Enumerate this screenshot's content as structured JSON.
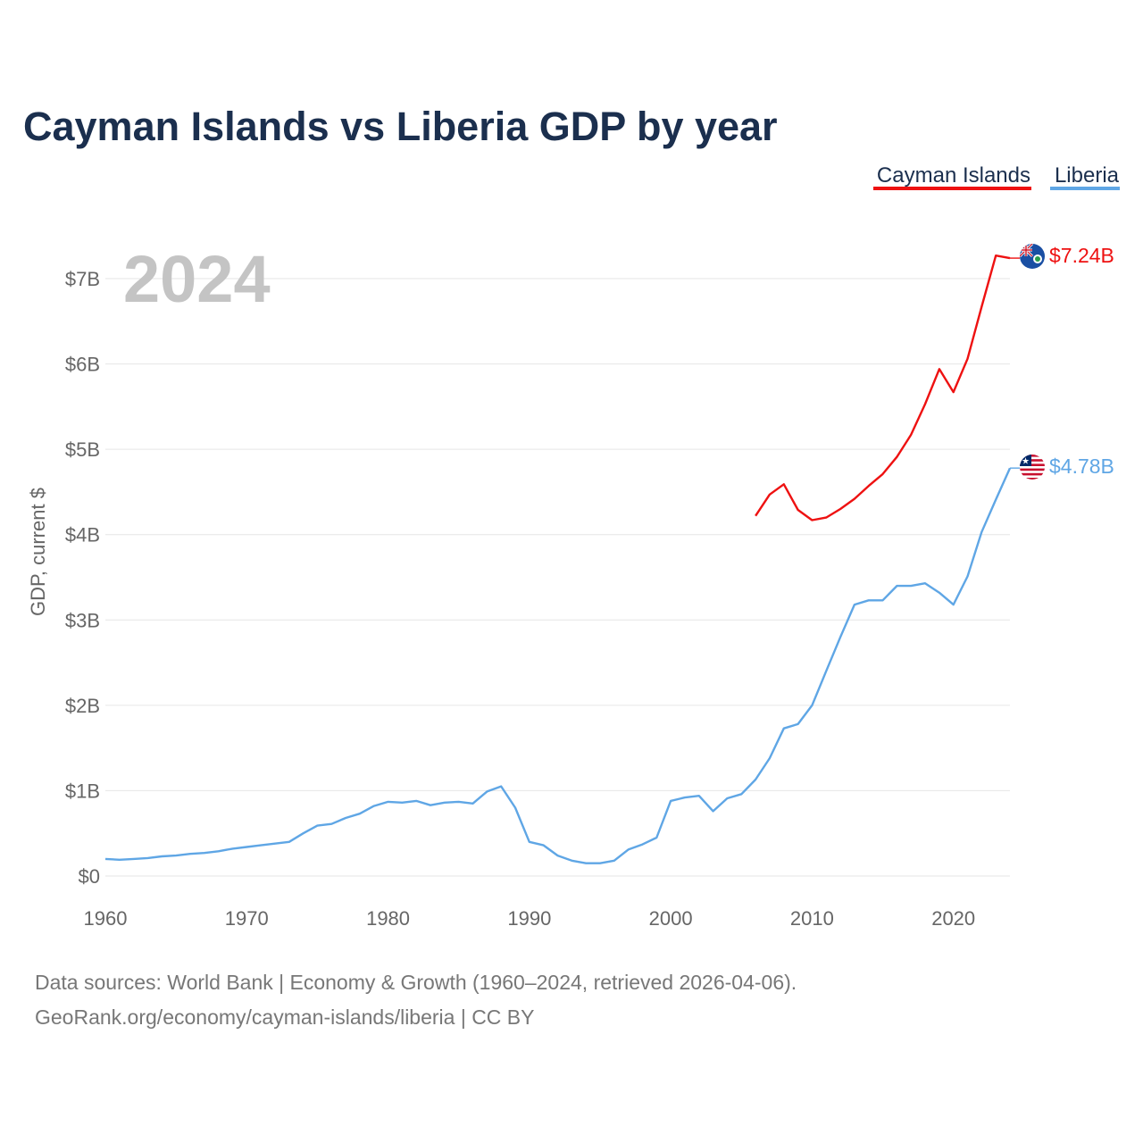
{
  "chart_data": {
    "type": "line",
    "title": "Cayman Islands vs Liberia GDP by year",
    "ylabel": "GDP, current $",
    "xlabel": "",
    "year_watermark": "2024",
    "xlim": [
      1960,
      2024
    ],
    "ylim": [
      0,
      7
    ],
    "x_ticks": [
      {
        "value": 1960,
        "label": "1960"
      },
      {
        "value": 1970,
        "label": "1970"
      },
      {
        "value": 1980,
        "label": "1980"
      },
      {
        "value": 1990,
        "label": "1990"
      },
      {
        "value": 2000,
        "label": "2000"
      },
      {
        "value": 2010,
        "label": "2010"
      },
      {
        "value": 2020,
        "label": "2020"
      }
    ],
    "y_ticks": [
      {
        "value": 0,
        "label": "$0"
      },
      {
        "value": 1,
        "label": "$1B"
      },
      {
        "value": 2,
        "label": "$2B"
      },
      {
        "value": 3,
        "label": "$3B"
      },
      {
        "value": 4,
        "label": "$4B"
      },
      {
        "value": 5,
        "label": "$5B"
      },
      {
        "value": 6,
        "label": "$6B"
      },
      {
        "value": 7,
        "label": "$7B"
      }
    ],
    "legend_position": "top-right",
    "series": [
      {
        "name": "Cayman Islands",
        "color": "#ee1111",
        "unit": "billion USD",
        "end_label": "$7.24B",
        "x": [
          2006,
          2007,
          2008,
          2009,
          2010,
          2011,
          2012,
          2013,
          2014,
          2015,
          2016,
          2017,
          2018,
          2019,
          2020,
          2021,
          2022,
          2023,
          2024
        ],
        "values": [
          4.22,
          4.47,
          4.59,
          4.29,
          4.17,
          4.2,
          4.3,
          4.42,
          4.57,
          4.71,
          4.91,
          5.17,
          5.53,
          5.94,
          5.67,
          6.06,
          6.67,
          7.27,
          7.24
        ]
      },
      {
        "name": "Liberia",
        "color": "#5fa6e5",
        "unit": "billion USD",
        "end_label": "$4.78B",
        "x": [
          1960,
          1961,
          1962,
          1963,
          1964,
          1965,
          1966,
          1967,
          1968,
          1969,
          1970,
          1971,
          1972,
          1973,
          1974,
          1975,
          1976,
          1977,
          1978,
          1979,
          1980,
          1981,
          1982,
          1983,
          1984,
          1985,
          1986,
          1987,
          1988,
          1989,
          1990,
          1991,
          1992,
          1993,
          1994,
          1995,
          1996,
          1997,
          1998,
          1999,
          2000,
          2001,
          2002,
          2003,
          2004,
          2005,
          2006,
          2007,
          2008,
          2009,
          2010,
          2011,
          2012,
          2013,
          2014,
          2015,
          2016,
          2017,
          2018,
          2019,
          2020,
          2021,
          2022,
          2023,
          2024
        ],
        "values": [
          0.2,
          0.19,
          0.2,
          0.21,
          0.23,
          0.24,
          0.26,
          0.27,
          0.29,
          0.32,
          0.34,
          0.36,
          0.38,
          0.4,
          0.5,
          0.59,
          0.61,
          0.68,
          0.73,
          0.82,
          0.87,
          0.86,
          0.88,
          0.83,
          0.86,
          0.87,
          0.85,
          0.99,
          1.05,
          0.8,
          0.4,
          0.36,
          0.24,
          0.18,
          0.15,
          0.15,
          0.18,
          0.31,
          0.37,
          0.45,
          0.88,
          0.92,
          0.94,
          0.76,
          0.91,
          0.96,
          1.13,
          1.38,
          1.73,
          1.78,
          2.0,
          2.4,
          2.8,
          3.18,
          3.23,
          3.23,
          3.4,
          3.4,
          3.43,
          3.32,
          3.18,
          3.51,
          4.03,
          4.41,
          4.78
        ]
      }
    ]
  },
  "source": {
    "line1": "Data sources: World Bank | Economy & Growth (1960–2024, retrieved 2026-04-06).",
    "line2": "GeoRank.org/economy/cayman-islands/liberia | CC BY"
  },
  "colors": {
    "title": "#1b2f4e",
    "axis_text": "#666666",
    "grid": "#e6e6e6",
    "watermark": "#c4c4c4"
  },
  "icons": {
    "cayman_marker": "cayman-islands-flag-icon",
    "liberia_marker": "liberia-flag-icon"
  }
}
